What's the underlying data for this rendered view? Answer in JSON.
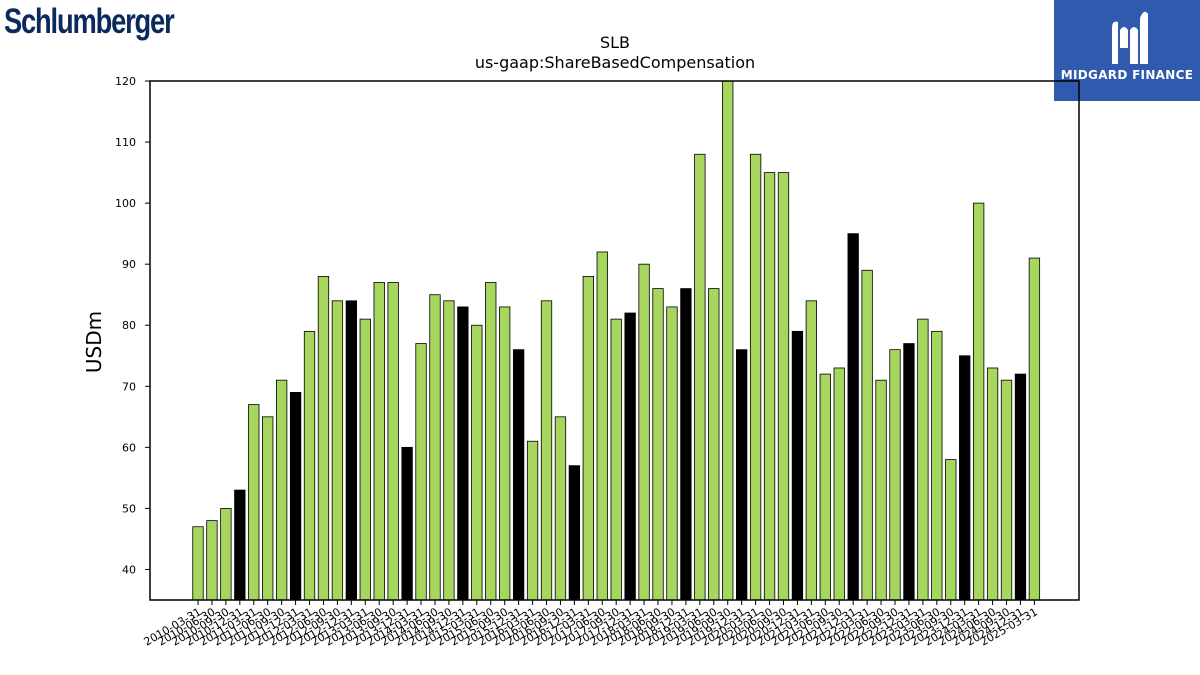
{
  "logos": {
    "left_text": "Schlumberger",
    "right_text": "MIDGARD FINANCE",
    "left_color": "#0b2a5c",
    "right_bg": "#2f5aad"
  },
  "colors": {
    "bar_default": "#a6d65e",
    "bar_highlight": "#000000",
    "bar_edge": "#000000"
  },
  "chart_data": {
    "type": "bar",
    "title": "SLB",
    "subtitle": "us-gaap:ShareBasedCompensation",
    "xlabel": "",
    "ylabel": "USDm",
    "ylim": [
      35,
      120
    ],
    "yticks": [
      40,
      50,
      60,
      70,
      80,
      90,
      100,
      110,
      120
    ],
    "grid": false,
    "categories": [
      "2010-03-31",
      "2010-06-30",
      "2010-09-30",
      "2010-12-31",
      "2011-03-31",
      "2011-06-30",
      "2011-09-30",
      "2011-12-31",
      "2012-03-31",
      "2012-06-30",
      "2012-09-30",
      "2012-12-31",
      "2013-03-31",
      "2013-06-30",
      "2013-09-30",
      "2013-12-31",
      "2014-03-31",
      "2014-06-30",
      "2014-09-30",
      "2014-12-31",
      "2015-03-31",
      "2015-06-30",
      "2015-09-30",
      "2015-12-31",
      "2016-03-31",
      "2016-06-30",
      "2016-09-30",
      "2016-12-31",
      "2017-03-31",
      "2017-06-30",
      "2017-09-30",
      "2017-12-31",
      "2018-03-31",
      "2018-06-30",
      "2018-09-30",
      "2018-12-31",
      "2019-03-31",
      "2019-06-30",
      "2019-09-30",
      "2019-12-31",
      "2020-03-31",
      "2020-06-30",
      "2020-09-30",
      "2020-12-31",
      "2021-03-31",
      "2021-06-30",
      "2021-09-30",
      "2021-12-31",
      "2022-03-31",
      "2022-06-30",
      "2022-09-30",
      "2022-12-31",
      "2023-03-31",
      "2023-06-30",
      "2023-09-30",
      "2023-12-31",
      "2024-03-31",
      "2024-06-30",
      "2024-09-30",
      "2024-12-31",
      "2025-03-31"
    ],
    "values": [
      47,
      48,
      50,
      53,
      67,
      65,
      71,
      69,
      79,
      88,
      84,
      84,
      81,
      87,
      87,
      60,
      77,
      85,
      84,
      83,
      80,
      87,
      83,
      76,
      61,
      84,
      65,
      57,
      88,
      92,
      81,
      82,
      90,
      86,
      83,
      86,
      108,
      86,
      120,
      76,
      108,
      105,
      105,
      79,
      84,
      72,
      73,
      95,
      89,
      71,
      76,
      77,
      81,
      79,
      58,
      75,
      100,
      73,
      71,
      72,
      91
    ],
    "highlight_every_4th_from": 3
  }
}
